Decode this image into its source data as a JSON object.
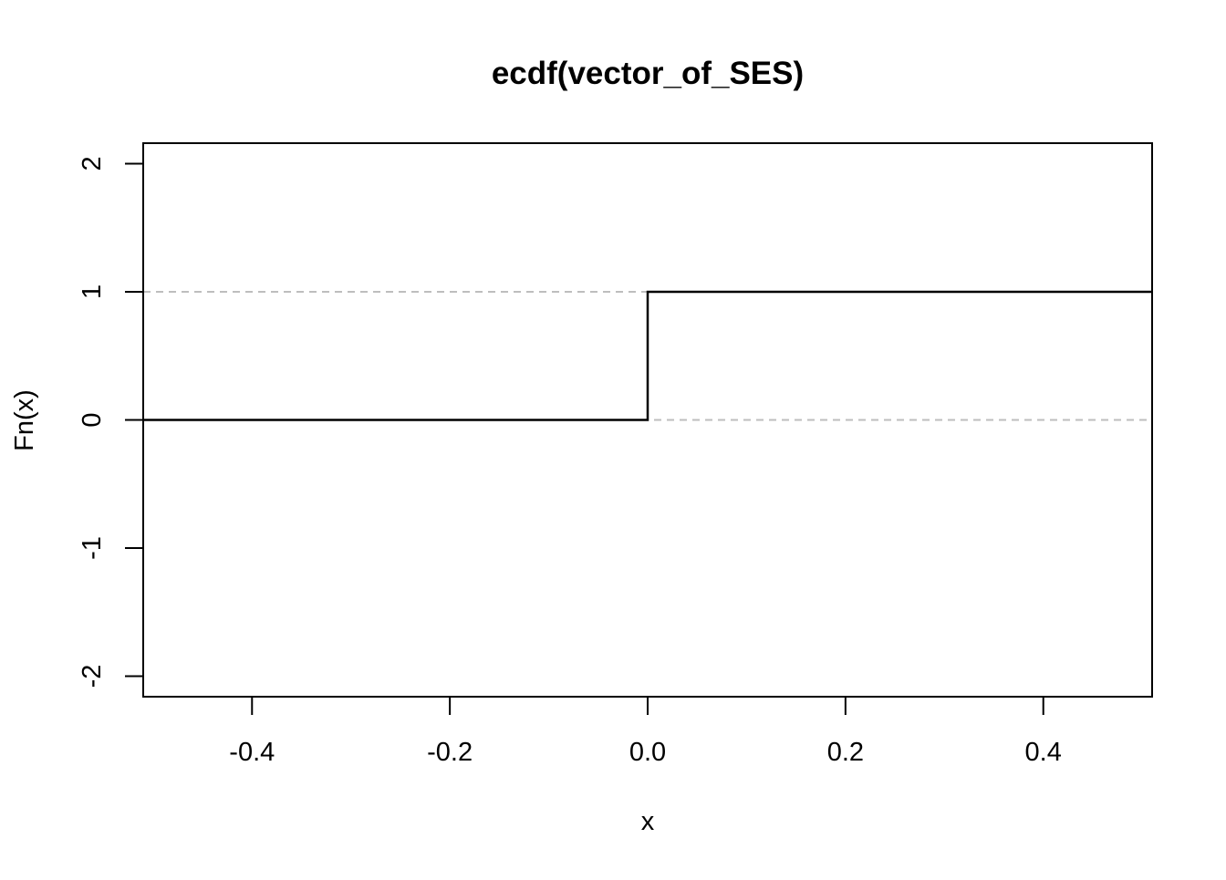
{
  "chart_data": {
    "type": "line",
    "title": "ecdf(vector_of_SES)",
    "xlabel": "x",
    "ylabel": "Fn(x)",
    "xlim": [
      -0.51,
      0.51
    ],
    "ylim": [
      -2.16,
      2.16
    ],
    "x_ticks": [
      -0.4,
      -0.2,
      0.0,
      0.2,
      0.4
    ],
    "x_tick_labels": [
      "-0.4",
      "-0.2",
      "0.0",
      "0.2",
      "0.4"
    ],
    "y_ticks": [
      -2,
      -1,
      0,
      1,
      2
    ],
    "y_tick_labels": [
      "-2",
      "-1",
      "0",
      "1",
      "2"
    ],
    "reference_lines": [
      0,
      1
    ],
    "reference_line_color": "#bebebe",
    "line_color": "#000000",
    "grid": false,
    "series": [
      {
        "x": [
          -0.51,
          0.0,
          0.0,
          0.51
        ],
        "y": [
          0,
          0,
          1,
          1
        ]
      }
    ]
  }
}
